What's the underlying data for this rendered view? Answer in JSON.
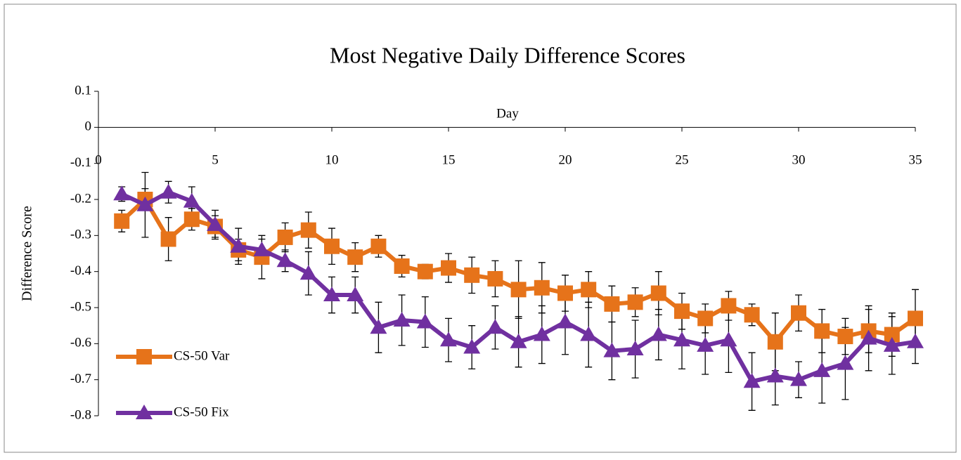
{
  "chart_data": {
    "type": "line",
    "title": "Most Negative Daily Difference Scores",
    "x_label": "Day",
    "y_label": "Difference Score",
    "x": [
      1,
      2,
      3,
      4,
      5,
      6,
      7,
      8,
      9,
      10,
      11,
      12,
      13,
      14,
      15,
      16,
      17,
      18,
      19,
      20,
      21,
      22,
      23,
      24,
      25,
      26,
      27,
      28,
      29,
      30,
      31,
      32,
      33,
      34,
      35
    ],
    "series": [
      {
        "name": "CS-50 Var",
        "color": "#e6731a",
        "marker": "square",
        "values": [
          -0.26,
          -0.2,
          -0.31,
          -0.255,
          -0.275,
          -0.34,
          -0.36,
          -0.305,
          -0.285,
          -0.33,
          -0.36,
          -0.33,
          -0.385,
          -0.4,
          -0.39,
          -0.41,
          -0.42,
          -0.45,
          -0.445,
          -0.46,
          -0.45,
          -0.49,
          -0.485,
          -0.46,
          -0.51,
          -0.53,
          -0.495,
          -0.52,
          -0.595,
          -0.515,
          -0.565,
          -0.58,
          -0.565,
          -0.575,
          -0.53
        ],
        "errors": [
          0.03,
          0.03,
          0.06,
          0.03,
          0.03,
          0.03,
          0.06,
          0.04,
          0.05,
          0.05,
          0.04,
          0.03,
          0.03,
          0.02,
          0.04,
          0.05,
          0.05,
          0.08,
          0.07,
          0.05,
          0.05,
          0.05,
          0.04,
          0.06,
          0.05,
          0.04,
          0.04,
          0.03,
          0.08,
          0.05,
          0.06,
          0.05,
          0.06,
          0.06,
          0.08
        ]
      },
      {
        "name": "CS-50 Fix",
        "color": "#7030a0",
        "marker": "triangle",
        "values": [
          -0.185,
          -0.215,
          -0.18,
          -0.205,
          -0.27,
          -0.33,
          -0.34,
          -0.37,
          -0.405,
          -0.465,
          -0.465,
          -0.555,
          -0.535,
          -0.54,
          -0.59,
          -0.61,
          -0.555,
          -0.595,
          -0.575,
          -0.54,
          -0.575,
          -0.62,
          -0.615,
          -0.575,
          -0.59,
          -0.605,
          -0.59,
          -0.705,
          -0.69,
          -0.7,
          -0.675,
          -0.655,
          -0.585,
          -0.605,
          -0.595
        ],
        "errors": [
          0.02,
          0.09,
          0.03,
          0.04,
          0.04,
          0.05,
          0.03,
          0.03,
          0.06,
          0.05,
          0.05,
          0.07,
          0.07,
          0.07,
          0.06,
          0.06,
          0.06,
          0.07,
          0.08,
          0.09,
          0.09,
          0.08,
          0.08,
          0.07,
          0.08,
          0.08,
          0.09,
          0.08,
          0.08,
          0.05,
          0.09,
          0.1,
          0.09,
          0.08,
          0.06
        ]
      }
    ],
    "xlim": [
      0,
      35
    ],
    "xticks": [
      0,
      5,
      10,
      15,
      20,
      25,
      30,
      35
    ],
    "ylim": [
      -0.8,
      0.1
    ],
    "yticks": [
      0.1,
      0,
      -0.1,
      -0.2,
      -0.3,
      -0.4,
      -0.5,
      -0.6,
      -0.7,
      -0.8
    ],
    "legend": "lower left",
    "grid": false
  }
}
